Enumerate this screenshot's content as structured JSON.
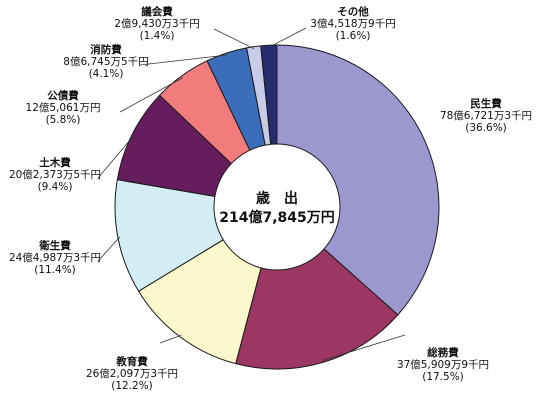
{
  "chart_data": {
    "type": "pie",
    "title": "",
    "center_label": {
      "line1": "歳　出",
      "line2": "214億7,845万円"
    },
    "categories": [
      "民生費",
      "総務費",
      "教育費",
      "衛生費",
      "土木費",
      "公債費",
      "消防費",
      "議会費",
      "その他"
    ],
    "values": [
      36.6,
      17.5,
      12.2,
      11.4,
      9.4,
      5.8,
      4.1,
      1.4,
      1.6
    ],
    "slices": [
      {
        "name": "民生費",
        "amount": "78億6,721万3千円",
        "percent_label": "(36.6%)",
        "value": 36.6,
        "color": "#9b98cf"
      },
      {
        "name": "総務費",
        "amount": "37億5,909万9千円",
        "percent_label": "(17.5%)",
        "value": 17.5,
        "color": "#9c3763"
      },
      {
        "name": "教育費",
        "amount": "26億2,097万3千円",
        "percent_label": "(12.2%)",
        "value": 12.2,
        "color": "#fbf8cc"
      },
      {
        "name": "衛生費",
        "amount": "24億4,987万3千円",
        "percent_label": "(11.4%)",
        "value": 11.4,
        "color": "#d3edf2"
      },
      {
        "name": "土木費",
        "amount": "20億2,373万5千円",
        "percent_label": "(9.4%)",
        "value": 9.4,
        "color": "#661d5e"
      },
      {
        "name": "公債費",
        "amount": "12億5,061万円",
        "percent_label": "(5.8%)",
        "value": 5.8,
        "color": "#f27c7c"
      },
      {
        "name": "消防費",
        "amount": "8億6,745万5千円",
        "percent_label": "(4.1%)",
        "value": 4.1,
        "color": "#3a6dba"
      },
      {
        "name": "議会費",
        "amount": "2億9,430万3千円",
        "percent_label": "(1.4%)",
        "value": 1.4,
        "color": "#c9cce8"
      },
      {
        "name": "その他",
        "amount": "3億4,518万9千円",
        "percent_label": "(1.6%)",
        "value": 1.6,
        "color": "#262c6e"
      }
    ],
    "legend": "none"
  }
}
